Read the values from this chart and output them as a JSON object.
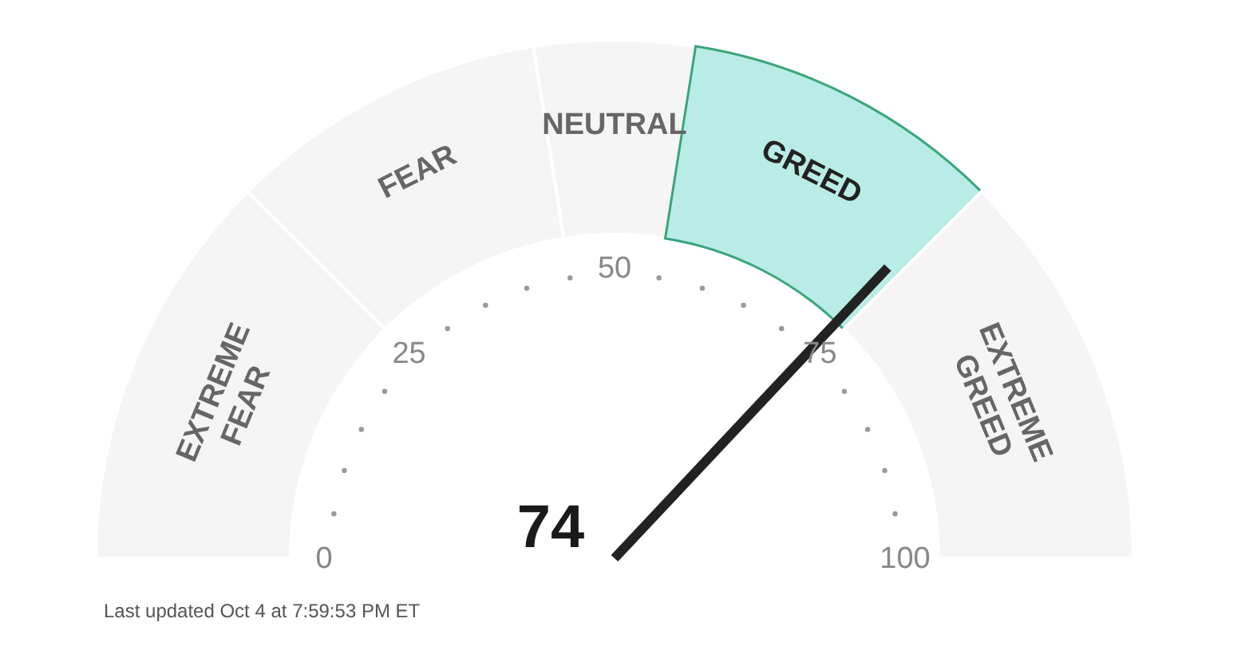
{
  "chart_data": {
    "type": "donut",
    "categories": [
      "EXTREME FEAR",
      "FEAR",
      "NEUTRAL",
      "GREED",
      "EXTREME GREED"
    ],
    "values": [
      25,
      20,
      10,
      20,
      25
    ],
    "colors": [
      "#f5f5f5",
      "#f5f5f5",
      "#f5f5f5",
      "#b9ece6",
      "#f5f5f5"
    ],
    "needle": "GREED",
    "annotations": [
      "0",
      "25",
      "50",
      "75",
      "100",
      "74",
      "Last updated Oct 4 at 7:59:53 PM ET"
    ]
  }
}
